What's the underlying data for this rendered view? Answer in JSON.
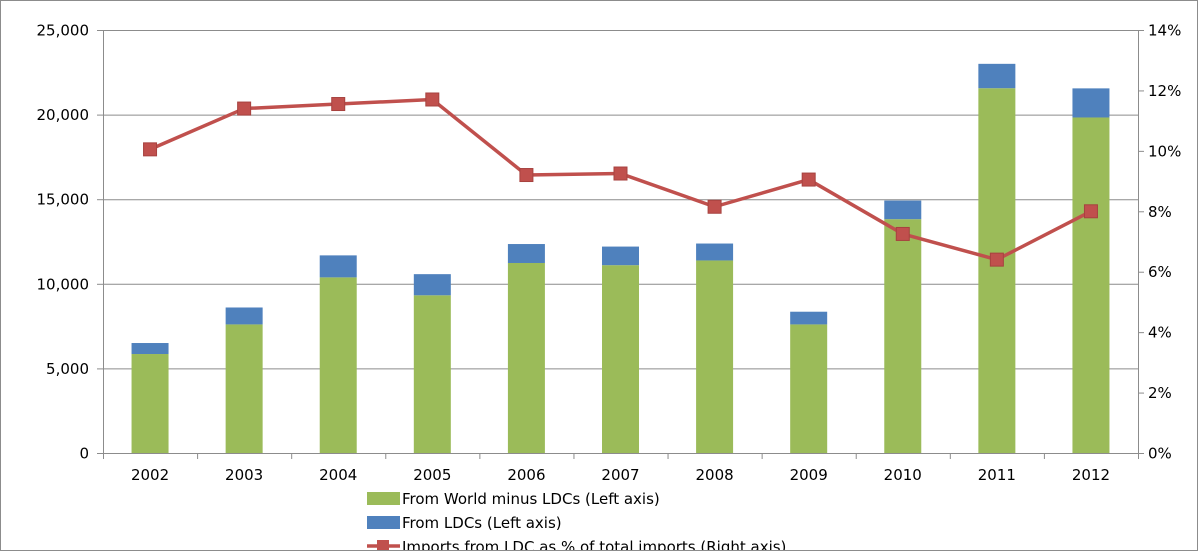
{
  "chart_data": {
    "type": "bar",
    "stacked": true,
    "title": "",
    "categories": [
      "2002",
      "2003",
      "2004",
      "2005",
      "2006",
      "2007",
      "2008",
      "2009",
      "2010",
      "2011",
      "2012"
    ],
    "series": [
      {
        "name": "From World minus LDCs (Left axis)",
        "type": "bar",
        "axis": "left",
        "color": "#9BBB59",
        "values": [
          5850,
          7600,
          10380,
          9320,
          11230,
          11100,
          11380,
          7600,
          13820,
          21560,
          19830
        ]
      },
      {
        "name": "From LDCs (Left axis)",
        "type": "bar",
        "axis": "left",
        "color": "#4F81BD",
        "values": [
          650,
          1000,
          1300,
          1250,
          1120,
          1100,
          1000,
          750,
          1100,
          1440,
          1720
        ]
      },
      {
        "name": "Imports from LDC as % of total imports (Right axis)",
        "type": "line",
        "axis": "right",
        "color": "#C0504D",
        "marker": "square",
        "values": [
          10.05,
          11.4,
          11.55,
          11.7,
          9.2,
          9.25,
          8.15,
          9.05,
          7.25,
          6.4,
          8.0
        ]
      }
    ],
    "y_left": {
      "ylim": [
        0,
        25000
      ],
      "ticks": [
        0,
        5000,
        10000,
        15000,
        20000,
        25000
      ],
      "tick_labels": [
        "0",
        "5,000",
        "10,000",
        "15,000",
        "20,000",
        "25,000"
      ]
    },
    "y_right": {
      "ylim": [
        0,
        14
      ],
      "ticks": [
        0,
        2,
        4,
        6,
        8,
        10,
        12,
        14
      ],
      "tick_labels": [
        "0%",
        "2%",
        "4%",
        "6%",
        "8%",
        "10%",
        "12%",
        "14%"
      ]
    },
    "grid": "horizontal",
    "grid_color": "#8c8c8c",
    "legend_position": "bottom"
  }
}
